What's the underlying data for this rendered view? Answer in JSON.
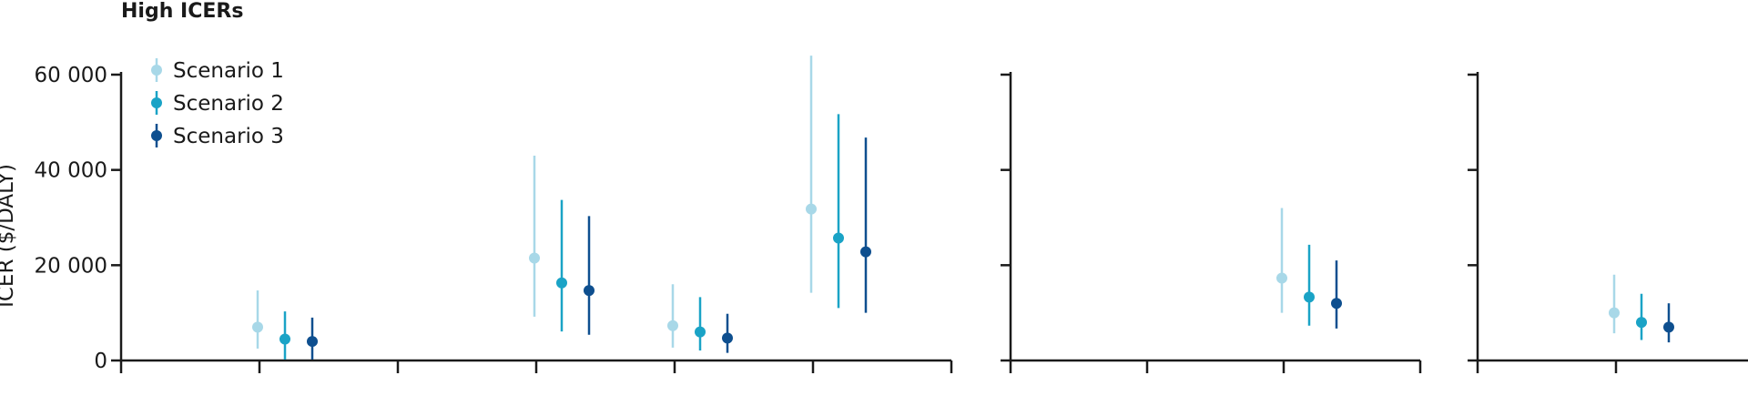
{
  "title": "High ICERs",
  "chart_data": {
    "type": "scatter",
    "ylabel": "ICER ($/DALY)",
    "ylim": [
      0,
      60000
    ],
    "yticks": [
      0,
      20000,
      40000,
      60000
    ],
    "ytick_labels": [
      "0",
      "20 000",
      "40 000",
      "60 000"
    ],
    "legend": {
      "placement": "top-left",
      "entries": [
        "Scenario 1",
        "Scenario 2",
        "Scenario 3"
      ]
    },
    "series_colors": [
      "#a8d8e8",
      "#1aa3c6",
      "#0e4f8f"
    ],
    "panels": [
      {
        "x_ticks": 7,
        "groups": [
          {
            "slot": 1,
            "values": [
              {
                "series": "Scenario 1",
                "point": 7000,
                "low": 2500,
                "high": 14700
              },
              {
                "series": "Scenario 2",
                "point": 4500,
                "low": 200,
                "high": 10300
              },
              {
                "series": "Scenario 3",
                "point": 4000,
                "low": 200,
                "high": 9000
              }
            ]
          },
          {
            "slot": 3,
            "values": [
              {
                "series": "Scenario 1",
                "point": 21500,
                "low": 9200,
                "high": 43000
              },
              {
                "series": "Scenario 2",
                "point": 16300,
                "low": 6100,
                "high": 33700
              },
              {
                "series": "Scenario 3",
                "point": 14700,
                "low": 5400,
                "high": 30300
              }
            ]
          },
          {
            "slot": 4,
            "values": [
              {
                "series": "Scenario 1",
                "point": 7300,
                "low": 2700,
                "high": 16000
              },
              {
                "series": "Scenario 2",
                "point": 6000,
                "low": 2100,
                "high": 13300
              },
              {
                "series": "Scenario 3",
                "point": 4700,
                "low": 1600,
                "high": 9800
              }
            ]
          },
          {
            "slot": 5,
            "values": [
              {
                "series": "Scenario 1",
                "point": 31800,
                "low": 14200,
                "high": 64000
              },
              {
                "series": "Scenario 2",
                "point": 25700,
                "low": 11000,
                "high": 51700
              },
              {
                "series": "Scenario 3",
                "point": 22800,
                "low": 10000,
                "high": 46800
              }
            ]
          }
        ]
      },
      {
        "x_ticks": 4,
        "groups": [
          {
            "slot": 2,
            "values": [
              {
                "series": "Scenario 1",
                "point": 17300,
                "low": 10000,
                "high": 32000
              },
              {
                "series": "Scenario 2",
                "point": 13300,
                "low": 7300,
                "high": 24300
              },
              {
                "series": "Scenario 3",
                "point": 12000,
                "low": 6700,
                "high": 21000
              }
            ]
          }
        ]
      },
      {
        "x_ticks": 3,
        "groups": [
          {
            "slot": 1,
            "values": [
              {
                "series": "Scenario 1",
                "point": 10000,
                "low": 5700,
                "high": 18000
              },
              {
                "series": "Scenario 2",
                "point": 8000,
                "low": 4300,
                "high": 14000
              },
              {
                "series": "Scenario 3",
                "point": 7000,
                "low": 3800,
                "high": 12000
              }
            ]
          }
        ]
      }
    ]
  }
}
